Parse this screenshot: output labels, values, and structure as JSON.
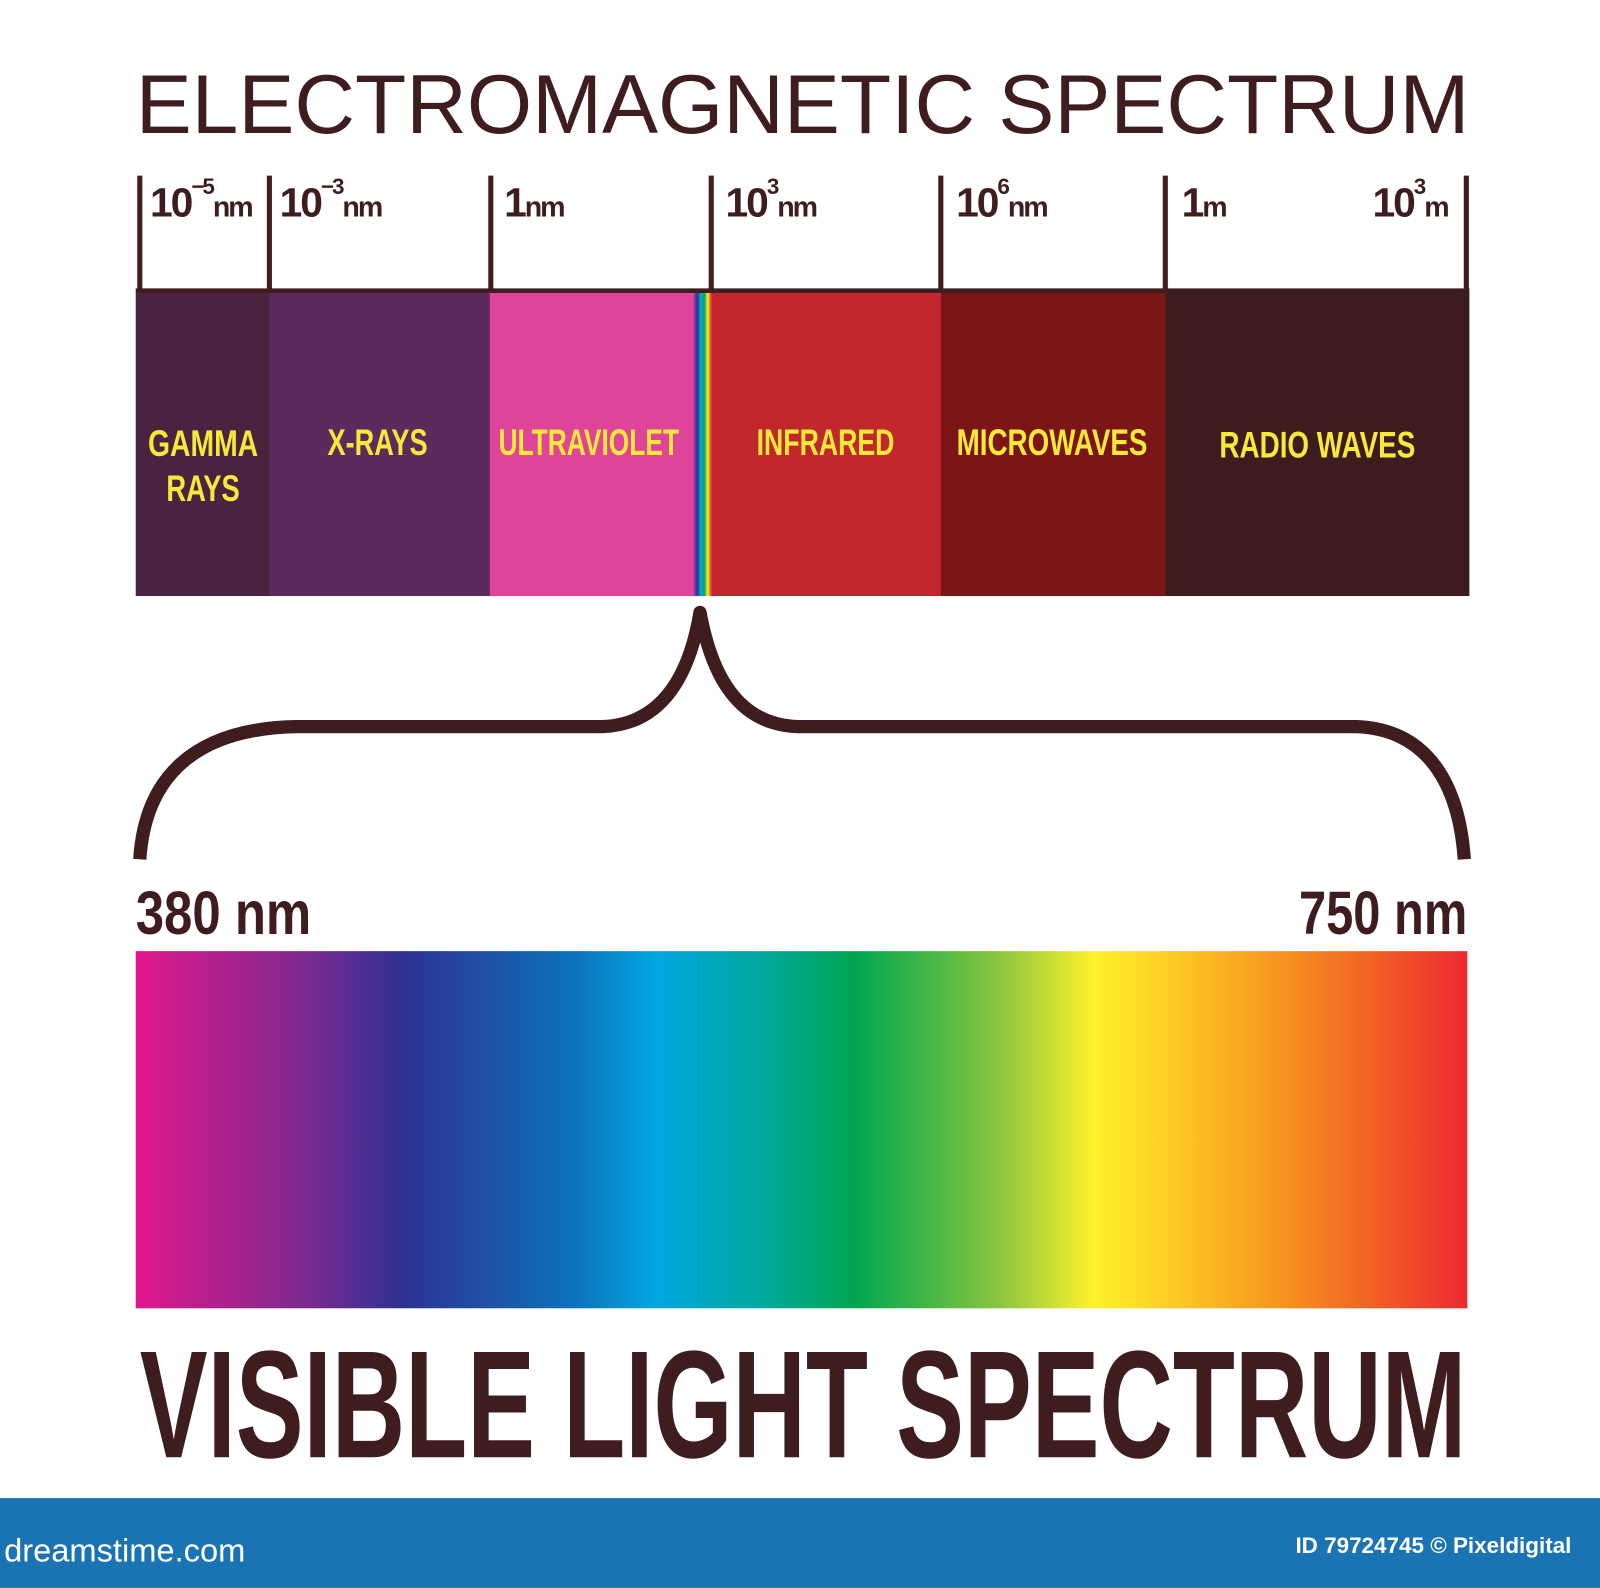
{
  "title": "ELECTROMAGNETIC SPECTRUM",
  "scale": [
    {
      "base": "10",
      "exp": "−5",
      "unit": "nm"
    },
    {
      "base": "10",
      "exp": "−3",
      "unit": "nm"
    },
    {
      "base": "1",
      "unit": "nm"
    },
    {
      "base": "10",
      "exp": "3",
      "unit": "nm"
    },
    {
      "base": "10",
      "exp": "6",
      "unit": "nm"
    },
    {
      "base": "1",
      "unit": "m"
    },
    {
      "base": "10",
      "exp": "3",
      "unit": "m"
    }
  ],
  "bands": [
    {
      "label": [
        "GAMMA",
        "RAYS"
      ]
    },
    {
      "label": [
        "X-RAYS"
      ]
    },
    {
      "label": [
        "ULTRAVIOLET"
      ]
    },
    {
      "label": [
        "INFRARED"
      ]
    },
    {
      "label": [
        "MICROWAVES"
      ]
    },
    {
      "label": [
        "RADIO WAVES"
      ]
    }
  ],
  "visible": {
    "min": "380 nm",
    "max": "750 nm",
    "title": "VISIBLE LIGHT SPECTRUM"
  },
  "footer": {
    "site": "dreamstime.com",
    "credit": "ID 79724745 © Pixeldigital"
  }
}
